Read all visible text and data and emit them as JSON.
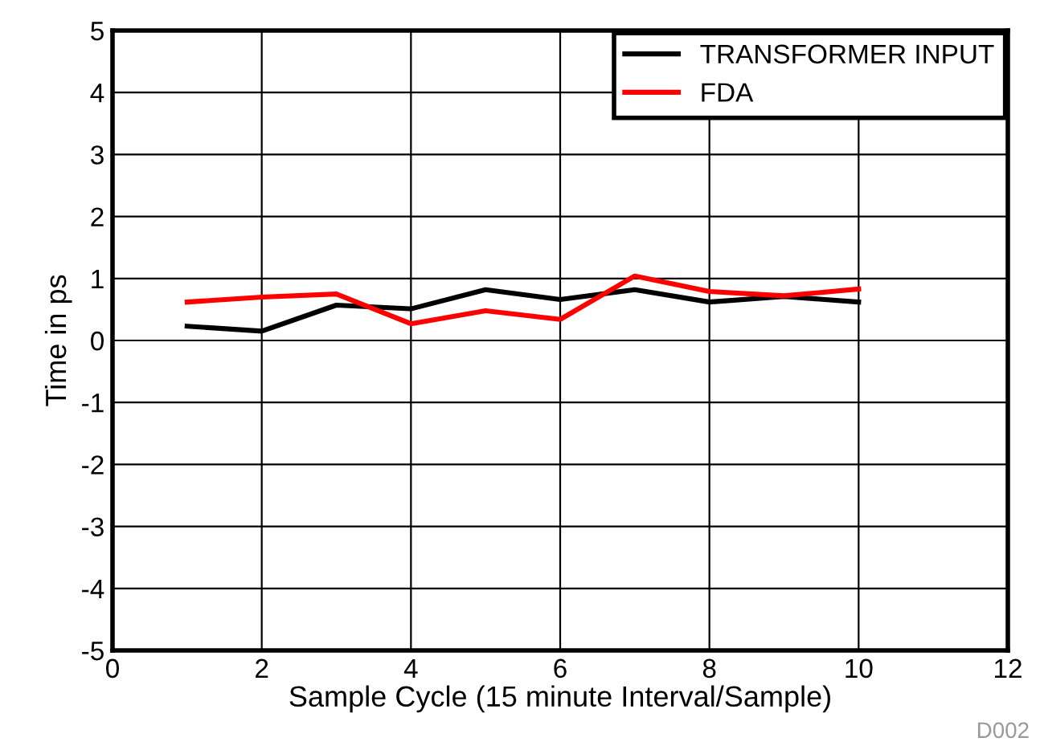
{
  "chart_data": {
    "type": "line",
    "xlabel": "Sample Cycle (15 minute Interval/Sample)",
    "ylabel": "Time in ps",
    "x": [
      1,
      2,
      3,
      4,
      5,
      6,
      7,
      8,
      9,
      10
    ],
    "series": [
      {
        "name": "TRANSFORMER INPUT",
        "color": "#000000",
        "values": [
          0.23,
          0.15,
          0.57,
          0.51,
          0.82,
          0.66,
          0.82,
          0.62,
          0.71,
          0.62
        ]
      },
      {
        "name": "FDA",
        "color": "#ff0000",
        "values": [
          0.62,
          0.7,
          0.75,
          0.27,
          0.48,
          0.34,
          1.04,
          0.79,
          0.72,
          0.83
        ]
      }
    ],
    "xlim": [
      0,
      12
    ],
    "xticks": [
      0,
      2,
      4,
      6,
      8,
      10,
      12
    ],
    "ylim": [
      -5,
      5
    ],
    "yticks": [
      -5,
      -4,
      -3,
      -2,
      -1,
      0,
      1,
      2,
      3,
      4,
      5
    ],
    "grid": true,
    "legend": "top right",
    "marker": "none",
    "line_style": "solid",
    "annotations": [
      "D002"
    ]
  }
}
